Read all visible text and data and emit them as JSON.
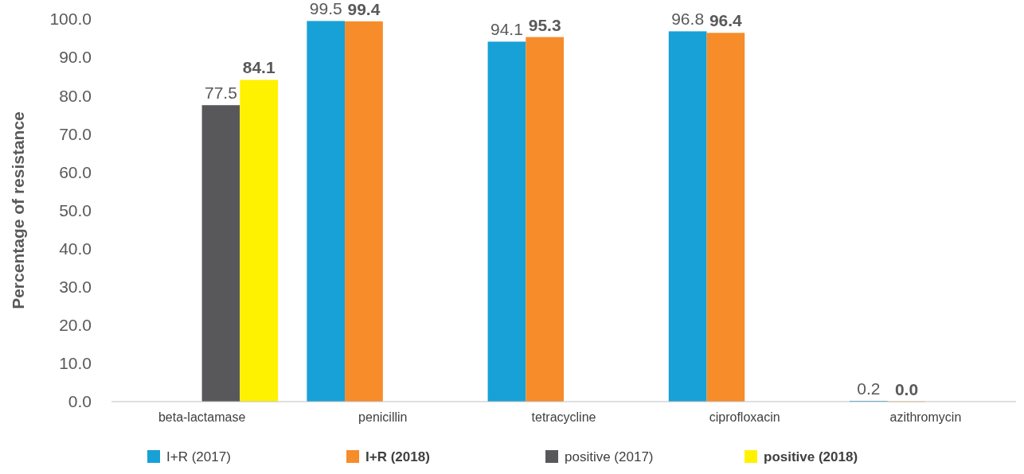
{
  "chart_data": {
    "type": "bar",
    "ylabel": "Percentage of resistance",
    "categories": [
      "beta-lactamase",
      "penicillin",
      "tetracycline",
      "ciprofloxacin",
      "azithromycin"
    ],
    "series": [
      {
        "name": "I+R (2017)",
        "color": "#17a1d6",
        "values": [
          null,
          99.5,
          94.1,
          96.8,
          0.2
        ],
        "value_labels": [
          null,
          "99.5",
          "94.1",
          "96.8",
          "0.2"
        ]
      },
      {
        "name": "I+R (2018)",
        "color": "#f68c2a",
        "values": [
          null,
          99.4,
          95.3,
          96.4,
          0.0
        ],
        "value_labels": [
          null,
          "99.4",
          "95.3",
          "96.4",
          "0.0"
        ]
      },
      {
        "name": "positive (2017)",
        "color": "#58585a",
        "values": [
          77.5,
          null,
          null,
          null,
          null
        ],
        "value_labels": [
          "77.5",
          null,
          null,
          null,
          null
        ]
      },
      {
        "name": "positive (2018)",
        "color": "#fff200",
        "values": [
          84.1,
          null,
          null,
          null,
          null
        ],
        "value_labels": [
          "84.1",
          null,
          null,
          null,
          null
        ]
      }
    ],
    "ylim": [
      0,
      100
    ],
    "yticks": [
      {
        "value": 0,
        "label": "0.0"
      },
      {
        "value": 10,
        "label": "10.0"
      },
      {
        "value": 20,
        "label": "20.0"
      },
      {
        "value": 30,
        "label": "30.0"
      },
      {
        "value": 40,
        "label": "40.0"
      },
      {
        "value": 50,
        "label": "50.0"
      },
      {
        "value": 60,
        "label": "60.0"
      },
      {
        "value": 70,
        "label": "70.0"
      },
      {
        "value": 80,
        "label": "80.0"
      },
      {
        "value": 90,
        "label": "90.0"
      },
      {
        "value": 100,
        "label": "100.0"
      }
    ],
    "legend": "bottom",
    "grid": false
  }
}
